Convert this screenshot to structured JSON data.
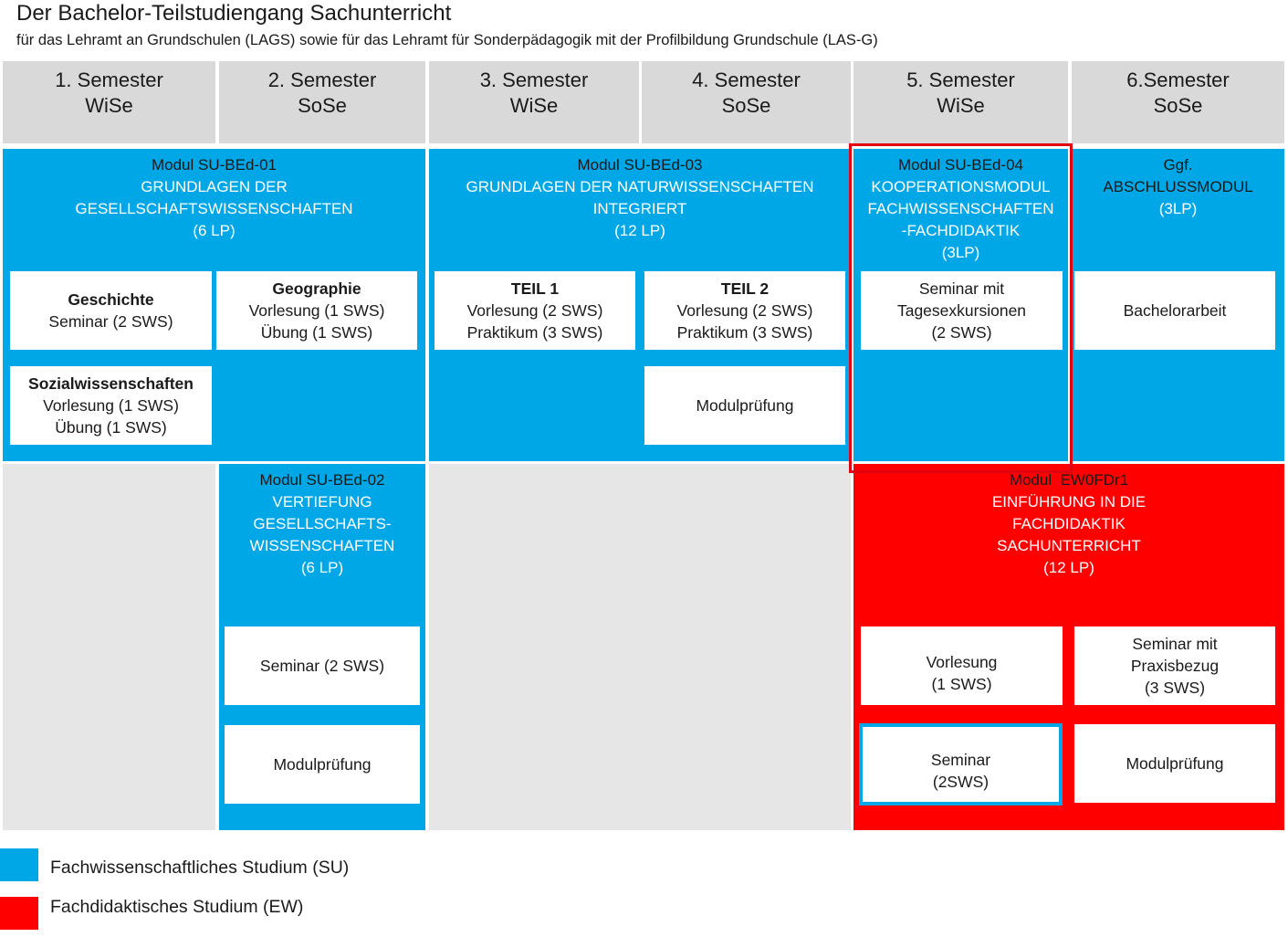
{
  "title": "Der Bachelor-Teilstudiengang Sachunterricht",
  "subtitle": "für das Lehramt an Grundschulen (LAGS) sowie für das Lehramt für Sonderpädagogik mit der Profilbildung Grundschule (LAS-G)",
  "semesters": [
    {
      "label": "1. Semester",
      "term": "WiSe"
    },
    {
      "label": "2. Semester",
      "term": "SoSe"
    },
    {
      "label": "3. Semester",
      "term": "WiSe"
    },
    {
      "label": "4. Semester",
      "term": "SoSe"
    },
    {
      "label": "5. Semester",
      "term": "WiSe"
    },
    {
      "label": "6.Semester",
      "term": "SoSe"
    }
  ],
  "colors": {
    "su": "#00a7e7",
    "ew": "#ff0000",
    "header": "#d9d9d9"
  },
  "modules": {
    "m01": {
      "code": "Modul SU-BEd-01",
      "title1": "GRUNDLAGEN DER",
      "title2": "GESELLSCHAFTSWISSENSCHAFTEN",
      "lp": "(6 LP)",
      "courses": [
        {
          "name": "Geschichte",
          "line1": "Seminar (2 SWS)"
        },
        {
          "name": "Geographie",
          "line1": "Vorlesung (1 SWS)",
          "line2": "Übung (1 SWS)"
        },
        {
          "name": "Sozialwissenschaften",
          "line1": "Vorlesung (1 SWS)",
          "line2": "Übung (1 SWS)"
        }
      ]
    },
    "m02": {
      "code": "Modul SU-BEd-02",
      "title1": "VERTIEFUNG",
      "title2": "GESELLSCHAFTS-",
      "title3": "WISSENSCHAFTEN",
      "lp": "(6 LP)",
      "courses": [
        {
          "line1": "Seminar (2 SWS)"
        },
        {
          "line1": "Modulprüfung"
        }
      ]
    },
    "m03": {
      "code": "Modul SU-BEd-03",
      "title1": "GRUNDLAGEN DER NATURWISSENSCHAFTEN",
      "title2": "INTEGRIERT",
      "lp": "(12 LP)",
      "courses": [
        {
          "name": "TEIL 1",
          "line1": "Vorlesung (2 SWS)",
          "line2": "Praktikum (3 SWS)"
        },
        {
          "name": "TEIL 2",
          "line1": "Vorlesung (2 SWS)",
          "line2": "Praktikum (3 SWS)"
        },
        {
          "line1": "Modulprüfung"
        }
      ]
    },
    "m04": {
      "code": "Modul SU-BEd-04",
      "title1": "KOOPERATIONSMODUL",
      "title2": "FACHWISSENSCHAFTEN",
      "title3": "-FACHDIDAKTIK",
      "lp": "(3LP)",
      "courses": [
        {
          "line1": "Seminar mit",
          "line2": "Tagesexkursionen",
          "line3": "(2 SWS)"
        }
      ]
    },
    "abschluss": {
      "code": "Ggf.",
      "title1": "ABSCHLUSSMODUL",
      "lp": "(3LP)",
      "courses": [
        {
          "line1": "Bachelorarbeit"
        }
      ]
    },
    "ew": {
      "code": "Modul  EW0FDr1",
      "title1": "EINFÜHRUNG IN DIE",
      "title2": "FACHDIDAKTIK",
      "title3": "SACHUNTERRICHT",
      "lp": "(12 LP)",
      "courses": [
        {
          "line1": "Vorlesung",
          "line2": "(1 SWS)"
        },
        {
          "line1": "Seminar mit",
          "line2": "Praxisbezug",
          "line3": "(3 SWS)"
        },
        {
          "line1": "Seminar",
          "line2": "(2SWS)"
        },
        {
          "line1": "Modulprüfung"
        }
      ]
    }
  },
  "legend": [
    {
      "color": "#00a7e7",
      "label": "Fachwissenschaftliches Studium (SU)"
    },
    {
      "color": "#ff0000",
      "label": "Fachdidaktisches Studium (EW)"
    }
  ]
}
